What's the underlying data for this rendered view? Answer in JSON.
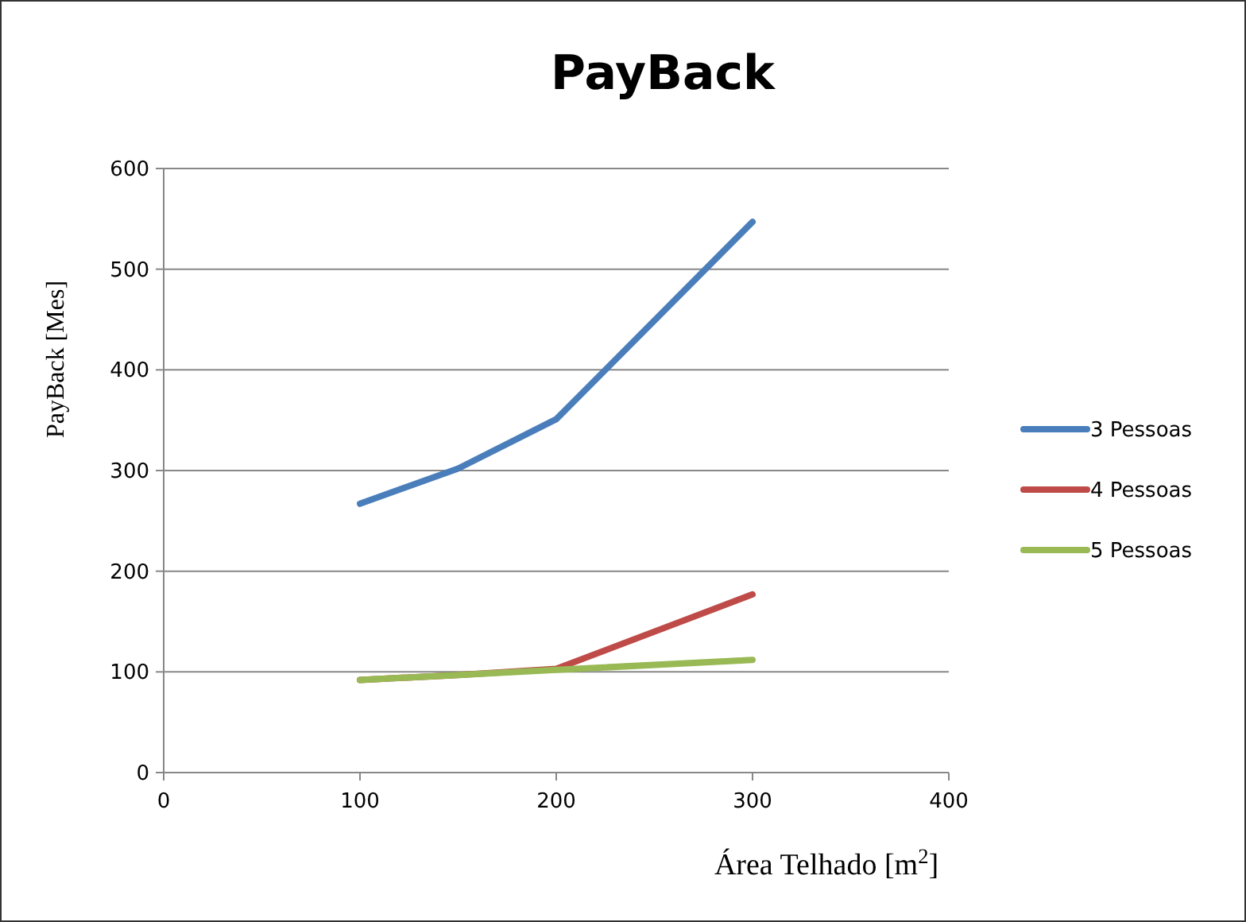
{
  "chart_data": {
    "type": "line",
    "title": "PayBack",
    "xlabel": "Área Telhado [m$^{2}$]",
    "ylabel": "PayBack [Mes]",
    "x": [
      100,
      150,
      200,
      300
    ],
    "series": [
      {
        "name": "3 Pessoas",
        "color": "#4a7ebb",
        "values": [
          267,
          302,
          351,
          547
        ]
      },
      {
        "name": "4 Pessoas",
        "color": "#be4b48",
        "values": [
          92,
          97,
          103,
          177
        ]
      },
      {
        "name": "5 Pessoas",
        "color": "#98b954",
        "values": [
          92,
          97,
          102,
          112
        ]
      }
    ],
    "xlim": [
      0,
      400
    ],
    "xticks": [
      0,
      100,
      200,
      300,
      400
    ],
    "ylim": [
      0,
      600
    ],
    "yticks": [
      0,
      100,
      200,
      300,
      400,
      500,
      600
    ],
    "grid": "y",
    "legend": "right",
    "marker": "none",
    "line_style": "solid"
  }
}
